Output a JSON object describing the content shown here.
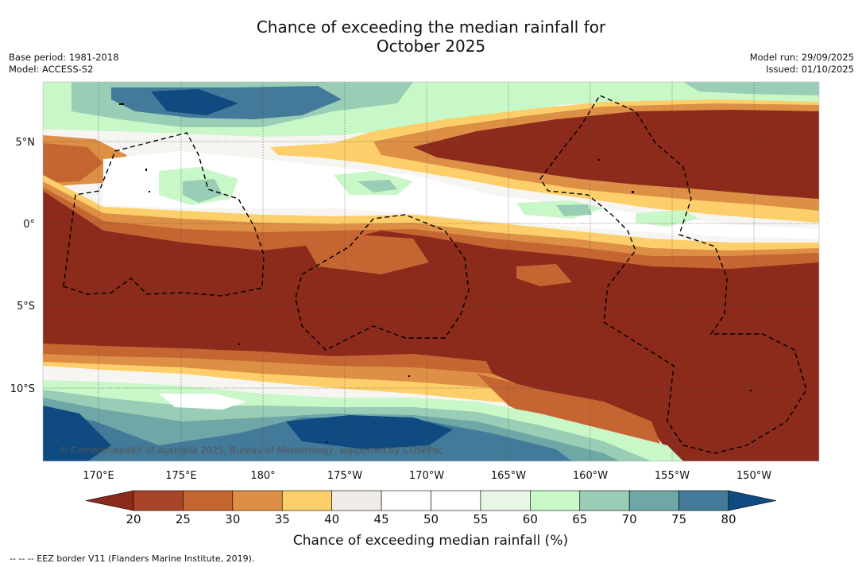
{
  "title_line1": "Chance of exceeding the median rainfall for",
  "title_line2": "October 2025",
  "base_period": "Base period: 1981-2018",
  "model": "Model: ACCESS-S2",
  "model_run": "Model run: 29/09/2025",
  "issued": "Issued: 01/10/2025",
  "copyright": "© Commonwealth of Australia 2025, Bureau of Meteorology, supported by COSPPac",
  "footer": "--  --  -- EEZ border V11 (Flanders Marine Institute, 2019).",
  "lon_ticks": [
    "170°E",
    "175°E",
    "180°",
    "175°W",
    "170°W",
    "165°W",
    "160°W",
    "155°W",
    "150°W"
  ],
  "lat_ticks": [
    "5°N",
    "0°",
    "5°S",
    "10°S"
  ],
  "colorbar": {
    "title": "Chance of exceeding median rainfall (%)",
    "ticks": [
      "20",
      "25",
      "30",
      "35",
      "40",
      "45",
      "50",
      "55",
      "60",
      "65",
      "70",
      "75",
      "80"
    ],
    "under_color": "#8c2a1c",
    "over_color": "#0f4a80",
    "colors": [
      "#a84428",
      "#c56531",
      "#dd8f45",
      "#fdcf6a",
      "#efebe6",
      "#ffffff",
      "#ffffff",
      "#eaf6e8",
      "#c8f7c8",
      "#99cdb5",
      "#6fa6a6",
      "#437a9a"
    ]
  },
  "chart_data": {
    "type": "heatmap",
    "title": "Chance of exceeding the median rainfall for October 2025",
    "units": "%",
    "region": {
      "lon_range": [
        "167°E",
        "146°W"
      ],
      "lat_range": [
        "15°S",
        "8°N"
      ]
    },
    "zones": [
      {
        "band": "north of 5°N, 167°E-175°W",
        "value_range": [
          60,
          80
        ]
      },
      {
        "band": "2°N-7°N, 170°W-146°W",
        "value_range": [
          15,
          25
        ]
      },
      {
        "band": "0°-2°N",
        "value_range": [
          45,
          65
        ]
      },
      {
        "band": "1°S-9°S",
        "value_range": [
          15,
          30
        ]
      },
      {
        "band": "9°S-12°S",
        "value_range": [
          30,
          50
        ]
      },
      {
        "band": "south of 12°S, 167°E-160°W",
        "value_range": [
          60,
          85
        ]
      }
    ]
  }
}
